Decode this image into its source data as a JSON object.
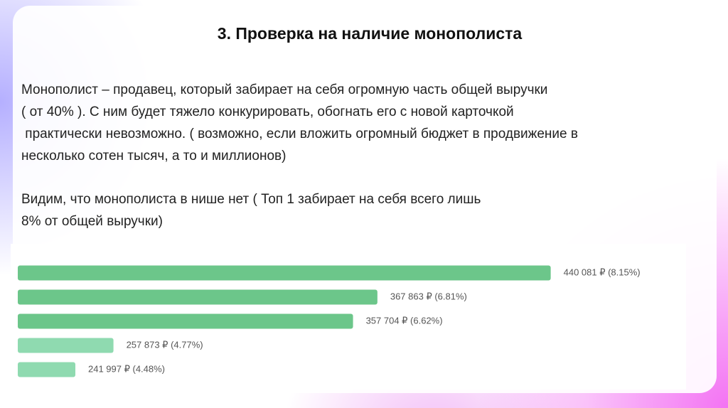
{
  "header": {
    "title": "3. Проверка на наличие монополиста"
  },
  "paragraphs": [
    {
      "lines": [
        "Монополист – продавец, который забирает на себя огромную часть общей выручки",
        "( от 40% ). С ним будет тяжело конкурировать, обогнать его с новой карточкой",
        " практически невозможно. ( возможно, если вложить огромный бюджет в продвижение в",
        "несколько сотен тысяч, а то и миллионов)"
      ]
    },
    {
      "lines": [
        "Видим, что монополиста в нише нет ( Топ 1 забирает на себя всего лишь",
        "8% от общей выручки)"
      ]
    }
  ],
  "chart_data": {
    "type": "hbar",
    "values": [
      440081,
      367863,
      357704,
      257873,
      241997
    ],
    "value_labels": [
      "440 081 ₽ (8.15%)",
      "367 863 ₽ (6.81%)",
      "357 704 ₽ (6.62%)",
      "257 873 ₽ (4.77%)",
      "241 997 ₽ (4.48%)"
    ],
    "colors": [
      "#6cc68a",
      "#6cc68a",
      "#6cc68a",
      "#8fdab0",
      "#8fdab0"
    ],
    "xlim": [
      218000,
      495000
    ]
  }
}
